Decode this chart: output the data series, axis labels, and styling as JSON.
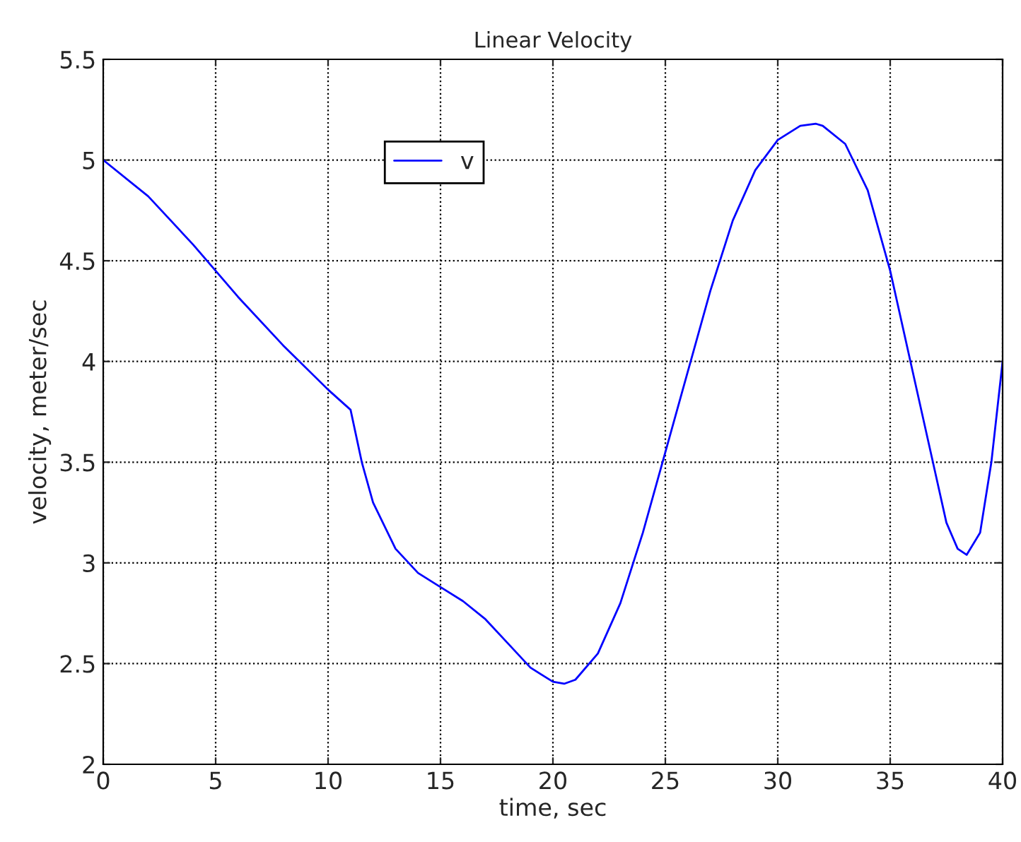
{
  "chart_data": {
    "type": "line",
    "title": "Linear Velocity",
    "xlabel": "time, sec",
    "ylabel": "velocity, meter/sec",
    "x": [
      0,
      2,
      4,
      5,
      6,
      8,
      10,
      11,
      11.5,
      12,
      13,
      14,
      15,
      16,
      17,
      18,
      19,
      20,
      20.5,
      21,
      22,
      23,
      24,
      25,
      26,
      27,
      28,
      29,
      30,
      31,
      31.7,
      32,
      33,
      34,
      35,
      36,
      37,
      37.5,
      38,
      38.4,
      39,
      39.5,
      40
    ],
    "series": [
      {
        "name": "v",
        "color": "#0000ff",
        "values": [
          5.0,
          4.82,
          4.58,
          4.45,
          4.32,
          4.08,
          3.86,
          3.76,
          3.5,
          3.3,
          3.07,
          2.95,
          2.88,
          2.81,
          2.72,
          2.6,
          2.48,
          2.41,
          2.4,
          2.42,
          2.55,
          2.8,
          3.15,
          3.55,
          3.95,
          4.35,
          4.7,
          4.95,
          5.1,
          5.17,
          5.18,
          5.17,
          5.08,
          4.85,
          4.45,
          3.95,
          3.45,
          3.2,
          3.07,
          3.04,
          3.15,
          3.5,
          4.0
        ]
      }
    ],
    "xlim": [
      0,
      40
    ],
    "xticks": [
      0,
      5,
      10,
      15,
      20,
      25,
      30,
      35,
      40
    ],
    "ylim": [
      2,
      5.5
    ],
    "yticks": [
      2,
      2.5,
      3,
      3.5,
      4,
      4.5,
      5,
      5.5
    ],
    "grid": true,
    "legend": "top left",
    "line_style": "solid",
    "marker": "none"
  }
}
